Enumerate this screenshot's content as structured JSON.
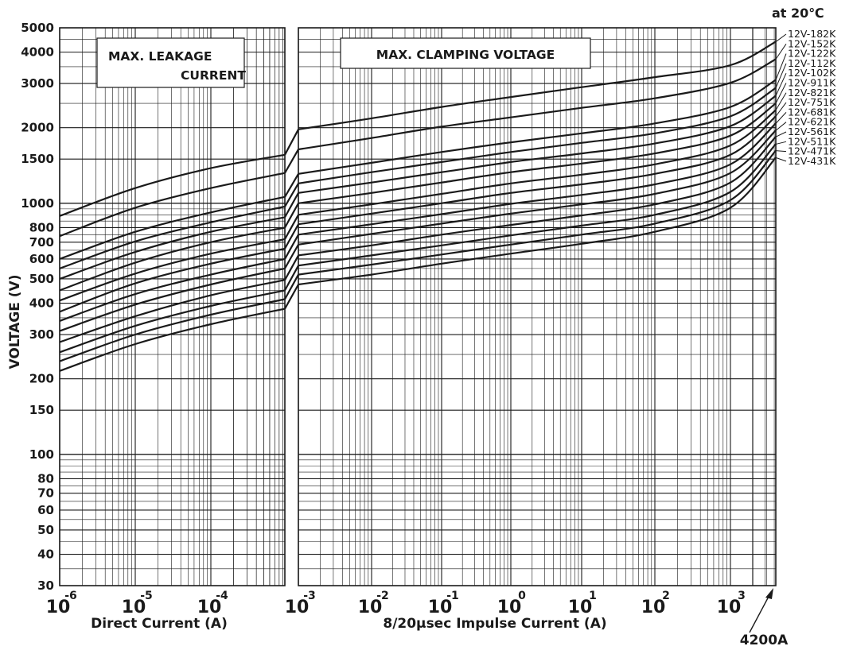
{
  "header": {
    "condition": "at 20℃"
  },
  "chart_data": {
    "type": "line",
    "ylabel": "VOLTAGE (V)",
    "y_scale": "log",
    "ylim": [
      30,
      5000
    ],
    "yticks": [
      30,
      40,
      50,
      60,
      70,
      80,
      100,
      150,
      200,
      300,
      400,
      500,
      600,
      700,
      800,
      1000,
      1500,
      2000,
      3000,
      4000,
      5000
    ],
    "ytick_labels": [
      "30",
      "40",
      "50",
      "60",
      "70",
      "80",
      "100",
      "150",
      "200",
      "300",
      "400",
      "500",
      "600",
      "700",
      "800",
      "1000",
      "1500",
      "2000",
      "3000",
      "4000",
      "5000"
    ],
    "panels": [
      {
        "title_lines": [
          "MAX.   LEAKAGE",
          "CURRENT"
        ],
        "xlabel": "Direct Current (A)",
        "x_scale": "log",
        "xlim": [
          1e-06,
          0.001
        ],
        "xticks": [
          {
            "base": "10",
            "exp": "-6"
          },
          {
            "base": "10",
            "exp": "-5"
          },
          {
            "base": "10",
            "exp": "-4"
          }
        ]
      },
      {
        "title_lines": [
          "MAX.  CLAMPING VOLTAGE"
        ],
        "xlabel": "8/20μsec  Impulse  Current (A)",
        "x_scale": "log",
        "xlim": [
          0.001,
          4200
        ],
        "xticks": [
          {
            "base": "10",
            "exp": "-3"
          },
          {
            "base": "10",
            "exp": "-2"
          },
          {
            "base": "10",
            "exp": "-1"
          },
          {
            "base": "10",
            "exp": "0"
          },
          {
            "base": "10",
            "exp": "1"
          },
          {
            "base": "10",
            "exp": "2"
          },
          {
            "base": "10",
            "exp": "3"
          }
        ]
      }
    ],
    "annotation": "4200A",
    "series": [
      {
        "name": "12V-182K",
        "leakage": [
          [
            1e-06,
            890
          ],
          [
            1e-05,
            1150
          ],
          [
            0.0001,
            1380
          ],
          [
            0.0007,
            1560
          ]
        ],
        "clamping": [
          [
            0.001,
            1970
          ],
          [
            0.01,
            2180
          ],
          [
            0.1,
            2420
          ],
          [
            1,
            2650
          ],
          [
            10,
            2900
          ],
          [
            100,
            3180
          ],
          [
            1000,
            3550
          ],
          [
            4200,
            4400
          ]
        ]
      },
      {
        "name": "12V-152K",
        "leakage": [
          [
            1e-06,
            740
          ],
          [
            1e-05,
            960
          ],
          [
            0.0001,
            1150
          ],
          [
            0.0007,
            1320
          ]
        ],
        "clamping": [
          [
            0.001,
            1640
          ],
          [
            0.01,
            1820
          ],
          [
            0.1,
            2020
          ],
          [
            1,
            2200
          ],
          [
            10,
            2400
          ],
          [
            100,
            2620
          ],
          [
            1000,
            3020
          ],
          [
            4200,
            3750
          ]
        ]
      },
      {
        "name": "12V-122K",
        "leakage": [
          [
            1e-06,
            600
          ],
          [
            1e-05,
            770
          ],
          [
            0.0001,
            920
          ],
          [
            0.0007,
            1060
          ]
        ],
        "clamping": [
          [
            0.001,
            1310
          ],
          [
            0.01,
            1450
          ],
          [
            0.1,
            1600
          ],
          [
            1,
            1750
          ],
          [
            10,
            1900
          ],
          [
            100,
            2080
          ],
          [
            1000,
            2420
          ],
          [
            4200,
            3100
          ]
        ]
      },
      {
        "name": "12V-112K",
        "leakage": [
          [
            1e-06,
            550
          ],
          [
            1e-05,
            705
          ],
          [
            0.0001,
            840
          ],
          [
            0.0007,
            970
          ]
        ],
        "clamping": [
          [
            0.001,
            1200
          ],
          [
            0.01,
            1330
          ],
          [
            0.1,
            1460
          ],
          [
            1,
            1600
          ],
          [
            10,
            1740
          ],
          [
            100,
            1900
          ],
          [
            1000,
            2220
          ],
          [
            4200,
            2880
          ]
        ]
      },
      {
        "name": "12V-102K",
        "leakage": [
          [
            1e-06,
            500
          ],
          [
            1e-05,
            640
          ],
          [
            0.0001,
            770
          ],
          [
            0.0007,
            880
          ]
        ],
        "clamping": [
          [
            0.001,
            1100
          ],
          [
            0.01,
            1210
          ],
          [
            0.1,
            1330
          ],
          [
            1,
            1460
          ],
          [
            10,
            1580
          ],
          [
            100,
            1730
          ],
          [
            1000,
            2030
          ],
          [
            4200,
            2680
          ]
        ]
      },
      {
        "name": "12V-911K",
        "leakage": [
          [
            1e-06,
            450
          ],
          [
            1e-05,
            580
          ],
          [
            0.0001,
            700
          ],
          [
            0.0007,
            800
          ]
        ],
        "clamping": [
          [
            0.001,
            1000
          ],
          [
            0.01,
            1100
          ],
          [
            0.1,
            1210
          ],
          [
            1,
            1330
          ],
          [
            10,
            1440
          ],
          [
            100,
            1580
          ],
          [
            1000,
            1860
          ],
          [
            4200,
            2500
          ]
        ]
      },
      {
        "name": "12V-821K",
        "leakage": [
          [
            1e-06,
            410
          ],
          [
            1e-05,
            525
          ],
          [
            0.0001,
            630
          ],
          [
            0.0007,
            720
          ]
        ],
        "clamping": [
          [
            0.001,
            900
          ],
          [
            0.01,
            990
          ],
          [
            0.1,
            1090
          ],
          [
            1,
            1200
          ],
          [
            10,
            1300
          ],
          [
            100,
            1430
          ],
          [
            1000,
            1700
          ],
          [
            4200,
            2350
          ]
        ]
      },
      {
        "name": "12V-751K",
        "leakage": [
          [
            1e-06,
            370
          ],
          [
            1e-05,
            480
          ],
          [
            0.0001,
            575
          ],
          [
            0.0007,
            660
          ]
        ],
        "clamping": [
          [
            0.001,
            825
          ],
          [
            0.01,
            910
          ],
          [
            0.1,
            1000
          ],
          [
            1,
            1100
          ],
          [
            10,
            1190
          ],
          [
            100,
            1310
          ],
          [
            1000,
            1560
          ],
          [
            4200,
            2220
          ]
        ]
      },
      {
        "name": "12V-681K",
        "leakage": [
          [
            1e-06,
            340
          ],
          [
            1e-05,
            435
          ],
          [
            0.0001,
            520
          ],
          [
            0.0007,
            600
          ]
        ],
        "clamping": [
          [
            0.001,
            750
          ],
          [
            0.01,
            825
          ],
          [
            0.1,
            905
          ],
          [
            1,
            995
          ],
          [
            10,
            1080
          ],
          [
            100,
            1190
          ],
          [
            1000,
            1430
          ],
          [
            4200,
            2080
          ]
        ]
      },
      {
        "name": "12V-621K",
        "leakage": [
          [
            1e-06,
            310
          ],
          [
            1e-05,
            395
          ],
          [
            0.0001,
            475
          ],
          [
            0.0007,
            550
          ]
        ],
        "clamping": [
          [
            0.001,
            685
          ],
          [
            0.01,
            755
          ],
          [
            0.1,
            830
          ],
          [
            1,
            910
          ],
          [
            10,
            990
          ],
          [
            100,
            1090
          ],
          [
            1000,
            1320
          ],
          [
            4200,
            1950
          ]
        ]
      },
      {
        "name": "12V-561K",
        "leakage": [
          [
            1e-06,
            280
          ],
          [
            1e-05,
            355
          ],
          [
            0.0001,
            430
          ],
          [
            0.0007,
            495
          ]
        ],
        "clamping": [
          [
            0.001,
            620
          ],
          [
            0.01,
            680
          ],
          [
            0.1,
            750
          ],
          [
            1,
            820
          ],
          [
            10,
            895
          ],
          [
            100,
            990
          ],
          [
            1000,
            1210
          ],
          [
            4200,
            1840
          ]
        ]
      },
      {
        "name": "12V-511K",
        "leakage": [
          [
            1e-06,
            255
          ],
          [
            1e-05,
            325
          ],
          [
            0.0001,
            390
          ],
          [
            0.0007,
            450
          ]
        ],
        "clamping": [
          [
            0.001,
            565
          ],
          [
            0.01,
            620
          ],
          [
            0.1,
            680
          ],
          [
            1,
            745
          ],
          [
            10,
            815
          ],
          [
            100,
            900
          ],
          [
            1000,
            1110
          ],
          [
            4200,
            1720
          ]
        ]
      },
      {
        "name": "12V-471K",
        "leakage": [
          [
            1e-06,
            235
          ],
          [
            1e-05,
            300
          ],
          [
            0.0001,
            360
          ],
          [
            0.0007,
            415
          ]
        ],
        "clamping": [
          [
            0.001,
            520
          ],
          [
            0.01,
            570
          ],
          [
            0.1,
            625
          ],
          [
            1,
            685
          ],
          [
            10,
            750
          ],
          [
            100,
            830
          ],
          [
            1000,
            1030
          ],
          [
            4200,
            1620
          ]
        ]
      },
      {
        "name": "12V-431K",
        "leakage": [
          [
            1e-06,
            215
          ],
          [
            1e-05,
            275
          ],
          [
            0.0001,
            330
          ],
          [
            0.0007,
            380
          ]
        ],
        "clamping": [
          [
            0.001,
            475
          ],
          [
            0.01,
            520
          ],
          [
            0.1,
            575
          ],
          [
            1,
            630
          ],
          [
            10,
            690
          ],
          [
            100,
            770
          ],
          [
            1000,
            960
          ],
          [
            4200,
            1520
          ]
        ]
      }
    ]
  }
}
